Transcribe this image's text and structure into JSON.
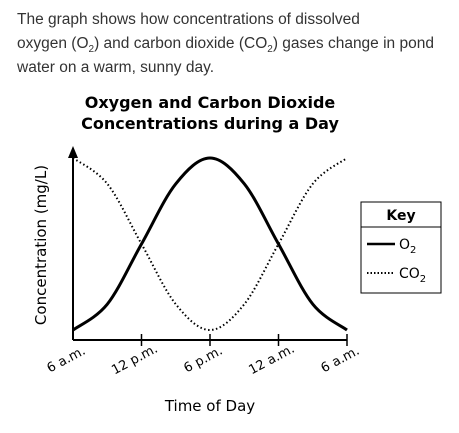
{
  "intro": {
    "line1": "The graph shows how concentrations of dissolved",
    "line2_a": "oxygen (O",
    "line2_sub1": "2",
    "line2_b": ") and carbon dioxide (CO",
    "line2_sub2": "2",
    "line2_c": ") gases change in pond",
    "line3": "water on a warm, sunny day."
  },
  "chart_data": {
    "type": "line",
    "title": [
      "Oxygen and Carbon Dioxide",
      "Concentrations during a Day"
    ],
    "xlabel": "Time of Day",
    "ylabel": "Concentration (mg/L)",
    "x": [
      0,
      3,
      6,
      9,
      12,
      15,
      18,
      21,
      24
    ],
    "x_ticks": [
      "6 a.m.",
      "12 p.m.",
      "6 p.m.",
      "12 a.m.",
      "6 a.m."
    ],
    "y_ticks_shown": false,
    "grid": false,
    "legend_position": "right",
    "legend_title": "Key",
    "series": [
      {
        "name": "O2",
        "label_base": "O",
        "label_sub": "2",
        "style": "solid",
        "values": [
          0.0,
          0.15,
          0.5,
          0.85,
          1.0,
          0.85,
          0.5,
          0.15,
          0.0
        ]
      },
      {
        "name": "CO2",
        "label_base": "CO",
        "label_sub": "2",
        "style": "dotted",
        "values": [
          1.0,
          0.85,
          0.5,
          0.15,
          0.0,
          0.15,
          0.5,
          0.85,
          1.0
        ]
      }
    ],
    "ylim": [
      0,
      1
    ],
    "xlim": [
      0,
      24
    ]
  }
}
